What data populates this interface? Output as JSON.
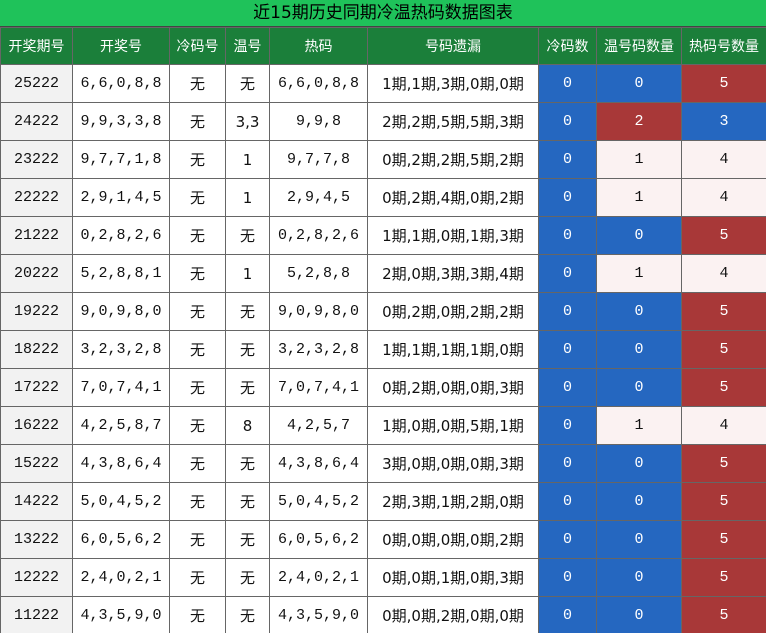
{
  "table": {
    "title": "近15期历史同期冷温热码数据图表",
    "columns": [
      "开奖期号",
      "开奖号",
      "冷码号",
      "温号",
      "热码",
      "号码遗漏",
      "冷码数",
      "温号码数量",
      "热码号数量"
    ],
    "count_colors": {
      "low": "#2567c0",
      "mid": "#fbf2f2",
      "high": "#a83838"
    },
    "rows": [
      [
        "25222",
        "6,6,0,8,8",
        "无",
        "无",
        "6,6,0,8,8",
        "1期,1期,3期,0期,0期",
        "0",
        "0",
        "5"
      ],
      [
        "24222",
        "9,9,3,3,8",
        "无",
        "3,3",
        "9,9,8",
        "2期,2期,5期,5期,3期",
        "0",
        "2",
        "3"
      ],
      [
        "23222",
        "9,7,7,1,8",
        "无",
        "1",
        "9,7,7,8",
        "0期,2期,2期,5期,2期",
        "0",
        "1",
        "4"
      ],
      [
        "22222",
        "2,9,1,4,5",
        "无",
        "1",
        "2,9,4,5",
        "0期,2期,4期,0期,2期",
        "0",
        "1",
        "4"
      ],
      [
        "21222",
        "0,2,8,2,6",
        "无",
        "无",
        "0,2,8,2,6",
        "1期,1期,0期,1期,3期",
        "0",
        "0",
        "5"
      ],
      [
        "20222",
        "5,2,8,8,1",
        "无",
        "1",
        "5,2,8,8",
        "2期,0期,3期,3期,4期",
        "0",
        "1",
        "4"
      ],
      [
        "19222",
        "9,0,9,8,0",
        "无",
        "无",
        "9,0,9,8,0",
        "0期,2期,0期,2期,2期",
        "0",
        "0",
        "5"
      ],
      [
        "18222",
        "3,2,3,2,8",
        "无",
        "无",
        "3,2,3,2,8",
        "1期,1期,1期,1期,0期",
        "0",
        "0",
        "5"
      ],
      [
        "17222",
        "7,0,7,4,1",
        "无",
        "无",
        "7,0,7,4,1",
        "0期,2期,0期,0期,3期",
        "0",
        "0",
        "5"
      ],
      [
        "16222",
        "4,2,5,8,7",
        "无",
        "8",
        "4,2,5,7",
        "1期,0期,0期,5期,1期",
        "0",
        "1",
        "4"
      ],
      [
        "15222",
        "4,3,8,6,4",
        "无",
        "无",
        "4,3,8,6,4",
        "3期,0期,0期,0期,3期",
        "0",
        "0",
        "5"
      ],
      [
        "14222",
        "5,0,4,5,2",
        "无",
        "无",
        "5,0,4,5,2",
        "2期,3期,1期,2期,0期",
        "0",
        "0",
        "5"
      ],
      [
        "13222",
        "6,0,5,6,2",
        "无",
        "无",
        "6,0,5,6,2",
        "0期,0期,0期,0期,2期",
        "0",
        "0",
        "5"
      ],
      [
        "12222",
        "2,4,0,2,1",
        "无",
        "无",
        "2,4,0,2,1",
        "0期,0期,1期,0期,3期",
        "0",
        "0",
        "5"
      ],
      [
        "11222",
        "4,3,5,9,0",
        "无",
        "无",
        "4,3,5,9,0",
        "0期,0期,2期,0期,0期",
        "0",
        "0",
        "5"
      ]
    ]
  }
}
